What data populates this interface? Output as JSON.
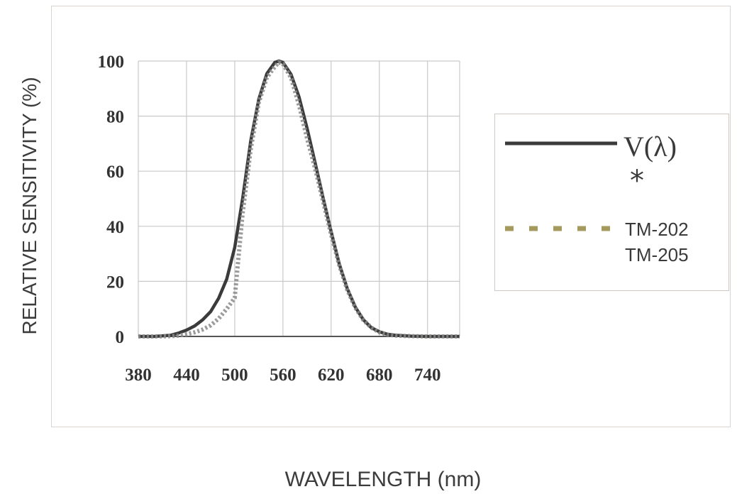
{
  "chart_data": {
    "type": "line",
    "xlabel": "WAVELENGTH (nm)",
    "ylabel": "RELATIVE SENSITIVITY (%)",
    "xlim": [
      380,
      780
    ],
    "ylim": [
      0,
      100
    ],
    "x_ticks": [
      "380",
      "440",
      "500",
      "560",
      "620",
      "680",
      "740"
    ],
    "y_ticks": [
      "0",
      "20",
      "40",
      "60",
      "80",
      "100"
    ],
    "grid": true,
    "legend_position": "right",
    "legend": {
      "v_label": "V(λ)",
      "asterisk": "*",
      "tm_label_1": "TM-202",
      "tm_label_2": "TM-205"
    },
    "series": [
      {
        "name": "V(λ)",
        "style": "solid",
        "x": [
          380,
          400,
          420,
          430,
          440,
          450,
          460,
          470,
          480,
          490,
          500,
          510,
          520,
          530,
          540,
          550,
          555,
          560,
          570,
          580,
          590,
          600,
          610,
          620,
          630,
          640,
          650,
          660,
          670,
          680,
          690,
          700,
          720,
          740,
          780
        ],
        "y": [
          0,
          0,
          0.4,
          1.2,
          2.3,
          3.8,
          6,
          9,
          13.9,
          20.8,
          32.3,
          50.3,
          71,
          86.2,
          95.4,
          99.5,
          100,
          99.5,
          95.2,
          87,
          75.7,
          63.1,
          50.3,
          38.1,
          26.5,
          17.5,
          10.7,
          6.1,
          3.2,
          1.7,
          0.8,
          0.4,
          0.1,
          0,
          0
        ]
      },
      {
        "name": "TM-202",
        "style": "dashed",
        "x": [
          380,
          400,
          420,
          430,
          440,
          450,
          460,
          470,
          480,
          490,
          500,
          510,
          520,
          530,
          540,
          550,
          555,
          560,
          570,
          580,
          590,
          600,
          610,
          620,
          630,
          640,
          650,
          660,
          670,
          680,
          690,
          700,
          720,
          740,
          780
        ],
        "y": [
          0,
          0,
          0.1,
          0.3,
          0.8,
          1.5,
          2.5,
          4,
          6.5,
          10,
          14,
          45,
          68,
          85,
          94,
          98,
          99.5,
          99,
          94,
          84,
          72,
          61,
          49,
          37,
          26,
          17,
          10.5,
          6,
          3.2,
          1.5,
          0.7,
          0.3,
          0.1,
          0,
          0
        ]
      }
    ],
    "colors": {
      "vlambda": "#3b3b3b",
      "tm": "#8a8a88",
      "tm_dash": "#a49a5e",
      "grid": "#c9c9c9",
      "axis": "#555555"
    }
  }
}
